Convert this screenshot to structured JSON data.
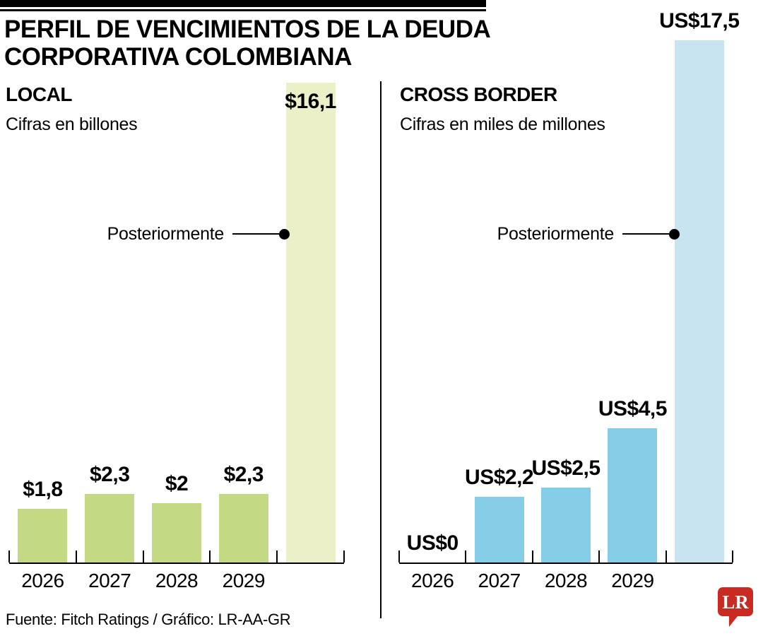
{
  "title": "PERFIL DE VENCIMIENTOS DE LA DEUDA CORPORATIVA COLOMBIANA",
  "title_lines": [
    "PERFIL DE VENCIMIENTOS DE LA DEUDA",
    "CORPORATIVA COLOMBIANA"
  ],
  "footer": {
    "source": "Fuente: Fitch Ratings / Gráfico: LR-AA-GR"
  },
  "logo": {
    "text": "LR",
    "color": "#c92b22"
  },
  "colors": {
    "local_bar": "#c3d983",
    "local_highlight": "#ebf0c9",
    "cross_bar": "#85cde7",
    "cross_highlight": "#c8e4f0",
    "ink": "#000000",
    "logo_red": "#c92b22"
  },
  "chart_data": [
    {
      "type": "bar",
      "title": "LOCAL",
      "subtitle": "Cifras en billones",
      "callout": "Posteriormente",
      "categories": [
        "2026",
        "2027",
        "2028",
        "2029",
        "Posteriormente"
      ],
      "values": [
        1.8,
        2.3,
        2.0,
        2.3,
        16.1
      ],
      "labels": [
        "$1,8",
        "$2,3",
        "$2",
        "$2,3",
        "$16,1"
      ],
      "bar_color": "#c3d983",
      "highlight_color": "#ebf0c9",
      "highlight_index": 4,
      "highlight_label_position": "inside",
      "ylim": [
        0,
        16.1
      ],
      "grid": false,
      "legend": false
    },
    {
      "type": "bar",
      "title": "CROSS BORDER",
      "subtitle": "Cifras en miles de millones",
      "callout": "Posteriormente",
      "categories": [
        "2026",
        "2027",
        "2028",
        "2029",
        "Posteriormente"
      ],
      "values": [
        0,
        2.2,
        2.5,
        4.5,
        17.5
      ],
      "labels": [
        "US$0",
        "US$2,2",
        "US$2,5",
        "US$4,5",
        "US$17,5"
      ],
      "bar_color": "#85cde7",
      "highlight_color": "#c8e4f0",
      "highlight_index": 4,
      "highlight_label_position": "above",
      "ylim": [
        0,
        17.5
      ],
      "grid": false,
      "legend": false
    }
  ]
}
